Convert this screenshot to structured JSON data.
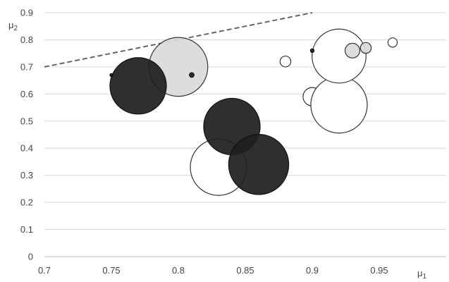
{
  "chart_data": {
    "type": "scatter",
    "variant": "bubble",
    "xlabel_main": "μ",
    "xlabel_sub": "1",
    "ylabel_main": "μ",
    "ylabel_sub": "2",
    "xlim": [
      0.7,
      1.0
    ],
    "ylim": [
      0,
      0.9
    ],
    "x_ticks": [
      {
        "value": 0.7,
        "label": "0.7"
      },
      {
        "value": 0.75,
        "label": "0.75"
      },
      {
        "value": 0.8,
        "label": "0.8"
      },
      {
        "value": 0.85,
        "label": "0.85"
      },
      {
        "value": 0.9,
        "label": "0.9"
      },
      {
        "value": 0.95,
        "label": "0.95"
      }
    ],
    "y_ticks": [
      {
        "value": 0,
        "label": "0"
      },
      {
        "value": 0.1,
        "label": "0.1"
      },
      {
        "value": 0.2,
        "label": "0.2"
      },
      {
        "value": 0.3,
        "label": "0.3"
      },
      {
        "value": 0.4,
        "label": "0.4"
      },
      {
        "value": 0.5,
        "label": "0.5"
      },
      {
        "value": 0.6,
        "label": "0.6"
      },
      {
        "value": 0.7,
        "label": "0.7"
      },
      {
        "value": 0.8,
        "label": "0.8"
      },
      {
        "value": 0.9,
        "label": "0.9"
      }
    ],
    "grid": "horizontal",
    "bubble_styles": {
      "white": {
        "fill": "#ffffff",
        "stroke": "#333333",
        "opacity": 1
      },
      "dark": {
        "fill": "#1f1f1f",
        "stroke": "#111111",
        "opacity": 0.93
      },
      "light": {
        "fill": "#d9d9d9",
        "stroke": "#333333",
        "opacity": 0.9
      }
    },
    "bubbles": [
      {
        "x": 0.83,
        "y": 0.33,
        "size": 23,
        "style": "white"
      },
      {
        "x": 0.9,
        "y": 0.59,
        "size": 7.5,
        "style": "white"
      },
      {
        "x": 0.92,
        "y": 0.56,
        "size": 23,
        "style": "white"
      },
      {
        "x": 0.92,
        "y": 0.74,
        "size": 22,
        "style": "white"
      },
      {
        "x": 0.88,
        "y": 0.72,
        "size": 4.4,
        "style": "white"
      },
      {
        "x": 0.96,
        "y": 0.79,
        "size": 3.8,
        "style": "white"
      },
      {
        "x": 0.8,
        "y": 0.7,
        "size": 24,
        "style": "light"
      },
      {
        "x": 0.93,
        "y": 0.76,
        "size": 6,
        "style": "light"
      },
      {
        "x": 0.94,
        "y": 0.77,
        "size": 4.4,
        "style": "light"
      },
      {
        "x": 0.77,
        "y": 0.63,
        "size": 23,
        "style": "dark"
      },
      {
        "x": 0.84,
        "y": 0.48,
        "size": 23,
        "style": "dark"
      },
      {
        "x": 0.86,
        "y": 0.34,
        "size": 24.5,
        "style": "dark"
      },
      {
        "x": 0.75,
        "y": 0.67,
        "size": 1.2,
        "style": "dark"
      },
      {
        "x": 0.81,
        "y": 0.67,
        "size": 1.9,
        "style": "dark"
      },
      {
        "x": 0.9,
        "y": 0.76,
        "size": 1.5,
        "style": "dark"
      }
    ],
    "reference_line": {
      "from": [
        0.7,
        0.7
      ],
      "to": [
        0.9,
        0.9
      ],
      "style": "dashed",
      "color": "#666666"
    }
  }
}
